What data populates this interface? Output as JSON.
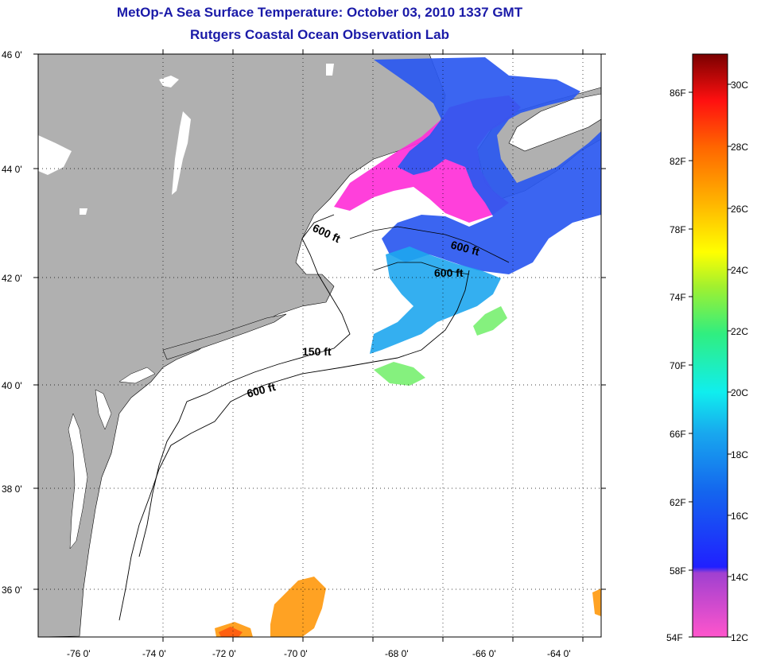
{
  "title_line1": "MetOp-A Sea Surface Temperature:  October 03, 2010 1337 GMT",
  "title_line2": "Rutgers Coastal Ocean Observation Lab",
  "latitude_labels": [
    "46 0'",
    "44 0'",
    "42 0'",
    "40 0'",
    "38 0'",
    "36 0'"
  ],
  "longitude_labels": [
    "-76 0'",
    "-74 0'",
    "-72 0'",
    "-70 0'",
    "-68 0'",
    "-66 0'",
    "-64 0'"
  ],
  "isobath_labels": [
    "600 ft",
    "600 ft",
    "600 ft",
    "150 ft",
    "600 ft"
  ],
  "colorbar": {
    "fahrenheit_labels": [
      "86F",
      "82F",
      "78F",
      "74F",
      "70F",
      "66F",
      "62F",
      "58F",
      "54F"
    ],
    "celsius_labels": [
      "30C",
      "28C",
      "26C",
      "24C",
      "22C",
      "20C",
      "18C",
      "16C",
      "14C",
      "12C"
    ]
  },
  "colors": {
    "land": "#b0b0b0",
    "ocean_no_data": "#ffffff",
    "title": "#1a1aa8"
  }
}
